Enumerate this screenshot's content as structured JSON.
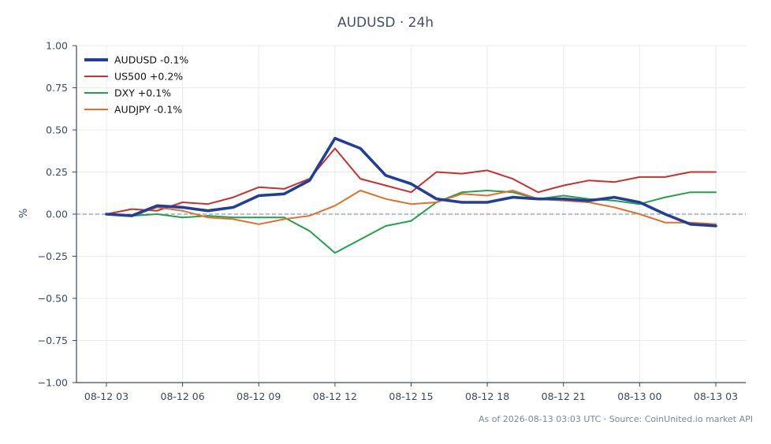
{
  "title": "AUDUSD · 24h",
  "footer": "As of 2026-08-13 03:03 UTC · Source: CoinUnited.io market API",
  "chart_data": {
    "type": "line",
    "title": "AUDUSD · 24h",
    "xlabel": "",
    "ylabel": "%",
    "ylim": [
      -1.0,
      1.0
    ],
    "yticks": [
      "1.00",
      "0.75",
      "0.50",
      "0.25",
      "0.00",
      "−0.25",
      "−0.50",
      "−0.75",
      "−1.00"
    ],
    "ytick_values": [
      1.0,
      0.75,
      0.5,
      0.25,
      0.0,
      -0.25,
      -0.5,
      -0.75,
      -1.0
    ],
    "x_tick_labels": [
      "08-12 03",
      "08-12 06",
      "08-12 09",
      "08-12 12",
      "08-12 15",
      "08-12 18",
      "08-12 21",
      "08-13 00",
      "08-13 03"
    ],
    "x_tick_hours": [
      0,
      3,
      6,
      9,
      12,
      15,
      18,
      21,
      24
    ],
    "x_hours": [
      0,
      1,
      2,
      3,
      4,
      5,
      6,
      7,
      8,
      9,
      10,
      11,
      12,
      13,
      14,
      15,
      16,
      17,
      18,
      19,
      20,
      21,
      22,
      23,
      24
    ],
    "grid": true,
    "zero_line": true,
    "legend_position": "top-left",
    "series": [
      {
        "name": "AUDUSD -0.1%",
        "color": "#213f99",
        "emphasis": true,
        "values": [
          0.0,
          -0.01,
          0.05,
          0.04,
          0.02,
          0.04,
          0.11,
          0.12,
          0.2,
          0.45,
          0.39,
          0.23,
          0.18,
          0.09,
          0.07,
          0.07,
          0.1,
          0.09,
          0.09,
          0.08,
          0.1,
          0.07,
          0.0,
          -0.06,
          -0.07
        ]
      },
      {
        "name": "US500 +0.2%",
        "color": "#c9302c",
        "emphasis": false,
        "values": [
          0.0,
          0.03,
          0.02,
          0.07,
          0.06,
          0.1,
          0.16,
          0.15,
          0.21,
          0.39,
          0.21,
          0.17,
          0.13,
          0.25,
          0.24,
          0.26,
          0.21,
          0.13,
          0.17,
          0.2,
          0.19,
          0.22,
          0.22,
          0.25,
          0.25
        ]
      },
      {
        "name": "DXY +0.1%",
        "color": "#22a04b",
        "emphasis": false,
        "values": [
          0.0,
          -0.01,
          0.0,
          -0.02,
          -0.01,
          -0.02,
          -0.02,
          -0.02,
          -0.1,
          -0.23,
          -0.15,
          -0.07,
          -0.04,
          0.07,
          0.13,
          0.14,
          0.13,
          0.09,
          0.11,
          0.09,
          0.08,
          0.06,
          0.1,
          0.13,
          0.13
        ]
      },
      {
        "name": "AUDJPY -0.1%",
        "color": "#e0702a",
        "emphasis": false,
        "values": [
          0.0,
          -0.01,
          0.04,
          0.02,
          -0.02,
          -0.03,
          -0.06,
          -0.03,
          -0.01,
          0.05,
          0.14,
          0.09,
          0.06,
          0.07,
          0.12,
          0.11,
          0.14,
          0.09,
          0.08,
          0.07,
          0.04,
          0.0,
          -0.05,
          -0.05,
          -0.06
        ]
      }
    ]
  }
}
